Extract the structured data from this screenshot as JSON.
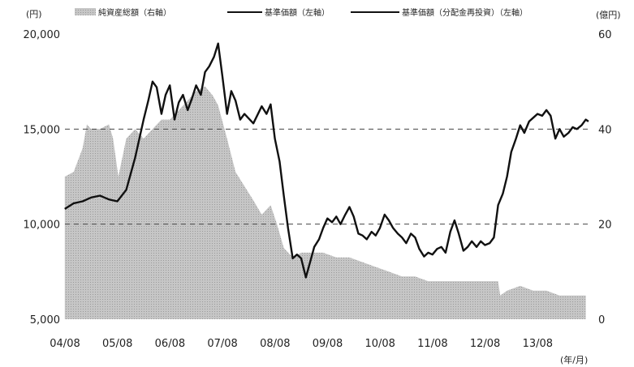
{
  "chart_data": {
    "type": "area+line",
    "legend_position": "top",
    "left_axis_unit": "(円)",
    "right_axis_unit": "(億円)",
    "x_axis_unit": "(年/月)",
    "legend": {
      "net_assets": "純資産総額（右軸）",
      "nav": "基準価額（左軸）",
      "nav_reinvested": "基準価額（分配金再投資）（左軸）"
    },
    "x_tick_labels": [
      "04/08",
      "05/08",
      "06/08",
      "07/08",
      "08/08",
      "09/08",
      "10/08",
      "11/08",
      "12/08",
      "13/08"
    ],
    "x_ticks": [
      2004.583,
      2005.583,
      2006.583,
      2007.583,
      2008.583,
      2009.583,
      2010.583,
      2011.583,
      2012.583,
      2013.583
    ],
    "xlim": [
      2004.583,
      2014.583
    ],
    "left_axis": {
      "ylim": [
        5000,
        20000
      ],
      "ticks": [
        5000,
        10000,
        15000,
        20000
      ],
      "tick_labels": [
        "5,000",
        "10,000",
        "15,000",
        "20,000"
      ]
    },
    "right_axis": {
      "ylim": [
        0,
        60
      ],
      "ticks": [
        0,
        20,
        40,
        60
      ],
      "tick_labels": [
        "0",
        "20",
        "40",
        "60"
      ]
    },
    "gridlines": [
      10000,
      15000
    ],
    "colors": {
      "area": "#c9c9c9",
      "line": "#111111",
      "grid": "#444444"
    },
    "series": [
      {
        "key": "net_assets",
        "axis": "right",
        "style": "area",
        "points": [
          [
            2004.58,
            30
          ],
          [
            2004.75,
            31
          ],
          [
            2004.92,
            36
          ],
          [
            2005.0,
            41
          ],
          [
            2005.08,
            40
          ],
          [
            2005.25,
            40
          ],
          [
            2005.42,
            41
          ],
          [
            2005.5,
            38
          ],
          [
            2005.6,
            30
          ],
          [
            2005.75,
            38
          ],
          [
            2005.92,
            40
          ],
          [
            2006.08,
            38
          ],
          [
            2006.25,
            40
          ],
          [
            2006.42,
            42
          ],
          [
            2006.58,
            42
          ],
          [
            2006.75,
            44
          ],
          [
            2006.92,
            46
          ],
          [
            2007.08,
            48
          ],
          [
            2007.25,
            49
          ],
          [
            2007.4,
            47
          ],
          [
            2007.5,
            45
          ],
          [
            2007.67,
            38
          ],
          [
            2007.83,
            31
          ],
          [
            2008.0,
            28
          ],
          [
            2008.17,
            25
          ],
          [
            2008.33,
            22
          ],
          [
            2008.5,
            24
          ],
          [
            2008.62,
            20
          ],
          [
            2008.75,
            15
          ],
          [
            2008.92,
            13
          ],
          [
            2009.08,
            14
          ],
          [
            2009.25,
            14
          ],
          [
            2009.5,
            14
          ],
          [
            2009.75,
            13
          ],
          [
            2010.0,
            13
          ],
          [
            2010.25,
            12
          ],
          [
            2010.5,
            11
          ],
          [
            2010.75,
            10
          ],
          [
            2011.0,
            9
          ],
          [
            2011.25,
            9
          ],
          [
            2011.5,
            8
          ],
          [
            2011.75,
            8
          ],
          [
            2012.0,
            8
          ],
          [
            2012.25,
            8
          ],
          [
            2012.5,
            8
          ],
          [
            2012.83,
            8
          ],
          [
            2012.87,
            5
          ],
          [
            2013.0,
            6
          ],
          [
            2013.25,
            7
          ],
          [
            2013.5,
            6
          ],
          [
            2013.75,
            6
          ],
          [
            2014.0,
            5
          ],
          [
            2014.25,
            5
          ],
          [
            2014.5,
            5
          ]
        ]
      },
      {
        "key": "nav",
        "axis": "left",
        "style": "line",
        "points": [
          [
            2004.58,
            10800
          ],
          [
            2004.75,
            11100
          ],
          [
            2004.92,
            11200
          ],
          [
            2005.08,
            11400
          ],
          [
            2005.25,
            11500
          ],
          [
            2005.42,
            11300
          ],
          [
            2005.58,
            11200
          ],
          [
            2005.75,
            11800
          ],
          [
            2005.92,
            13500
          ],
          [
            2006.08,
            15500
          ],
          [
            2006.17,
            16500
          ],
          [
            2006.25,
            17500
          ],
          [
            2006.33,
            17200
          ],
          [
            2006.42,
            15800
          ],
          [
            2006.5,
            16800
          ],
          [
            2006.58,
            17300
          ],
          [
            2006.67,
            15500
          ],
          [
            2006.75,
            16400
          ],
          [
            2006.83,
            16800
          ],
          [
            2006.92,
            16000
          ],
          [
            2007.0,
            16600
          ],
          [
            2007.08,
            17300
          ],
          [
            2007.17,
            16800
          ],
          [
            2007.25,
            18000
          ],
          [
            2007.33,
            18300
          ],
          [
            2007.42,
            18800
          ],
          [
            2007.5,
            19500
          ],
          [
            2007.58,
            17800
          ],
          [
            2007.67,
            15800
          ],
          [
            2007.75,
            17000
          ],
          [
            2007.83,
            16500
          ],
          [
            2007.92,
            15500
          ],
          [
            2008.0,
            15800
          ],
          [
            2008.17,
            15300
          ],
          [
            2008.33,
            16200
          ],
          [
            2008.42,
            15800
          ],
          [
            2008.5,
            16300
          ],
          [
            2008.58,
            14500
          ],
          [
            2008.67,
            13300
          ],
          [
            2008.75,
            11500
          ],
          [
            2008.83,
            9800
          ],
          [
            2008.92,
            8200
          ],
          [
            2009.0,
            8400
          ],
          [
            2009.08,
            8200
          ],
          [
            2009.17,
            7200
          ],
          [
            2009.25,
            8000
          ],
          [
            2009.33,
            8800
          ],
          [
            2009.42,
            9200
          ],
          [
            2009.5,
            9800
          ],
          [
            2009.58,
            10300
          ],
          [
            2009.67,
            10100
          ],
          [
            2009.75,
            10400
          ],
          [
            2009.83,
            10000
          ],
          [
            2009.92,
            10500
          ],
          [
            2010.0,
            10900
          ],
          [
            2010.08,
            10400
          ],
          [
            2010.17,
            9500
          ],
          [
            2010.25,
            9400
          ],
          [
            2010.33,
            9200
          ],
          [
            2010.42,
            9600
          ],
          [
            2010.5,
            9400
          ],
          [
            2010.58,
            9800
          ],
          [
            2010.67,
            10500
          ],
          [
            2010.75,
            10200
          ],
          [
            2010.83,
            9800
          ],
          [
            2010.92,
            9500
          ],
          [
            2011.0,
            9300
          ],
          [
            2011.08,
            9000
          ],
          [
            2011.17,
            9500
          ],
          [
            2011.25,
            9300
          ],
          [
            2011.33,
            8700
          ],
          [
            2011.42,
            8300
          ],
          [
            2011.5,
            8500
          ],
          [
            2011.58,
            8400
          ],
          [
            2011.67,
            8700
          ],
          [
            2011.75,
            8800
          ],
          [
            2011.83,
            8500
          ],
          [
            2011.92,
            9600
          ],
          [
            2012.0,
            10200
          ],
          [
            2012.08,
            9500
          ],
          [
            2012.17,
            8600
          ],
          [
            2012.25,
            8800
          ],
          [
            2012.33,
            9100
          ],
          [
            2012.42,
            8800
          ],
          [
            2012.5,
            9100
          ],
          [
            2012.58,
            8900
          ],
          [
            2012.67,
            9000
          ],
          [
            2012.75,
            9300
          ],
          [
            2012.83,
            11000
          ],
          [
            2012.92,
            11600
          ],
          [
            2013.0,
            12500
          ],
          [
            2013.08,
            13800
          ],
          [
            2013.17,
            14500
          ],
          [
            2013.25,
            15200
          ],
          [
            2013.33,
            14800
          ],
          [
            2013.42,
            15400
          ],
          [
            2013.5,
            15600
          ],
          [
            2013.58,
            15800
          ],
          [
            2013.67,
            15700
          ],
          [
            2013.75,
            16000
          ],
          [
            2013.83,
            15700
          ],
          [
            2013.92,
            14500
          ],
          [
            2014.0,
            15000
          ],
          [
            2014.08,
            14600
          ],
          [
            2014.17,
            14800
          ],
          [
            2014.25,
            15100
          ],
          [
            2014.33,
            15000
          ],
          [
            2014.42,
            15200
          ],
          [
            2014.5,
            15500
          ],
          [
            2014.55,
            15400
          ]
        ]
      },
      {
        "key": "nav_reinvested",
        "axis": "left",
        "style": "line",
        "points": [
          [
            2004.58,
            10800
          ],
          [
            2004.75,
            11100
          ],
          [
            2004.92,
            11200
          ],
          [
            2005.08,
            11400
          ],
          [
            2005.25,
            11500
          ],
          [
            2005.42,
            11300
          ],
          [
            2005.58,
            11200
          ],
          [
            2005.75,
            11800
          ],
          [
            2005.92,
            13500
          ],
          [
            2006.08,
            15500
          ],
          [
            2006.17,
            16500
          ],
          [
            2006.25,
            17500
          ],
          [
            2006.33,
            17200
          ],
          [
            2006.42,
            15800
          ],
          [
            2006.5,
            16800
          ],
          [
            2006.58,
            17300
          ],
          [
            2006.67,
            15500
          ],
          [
            2006.75,
            16400
          ],
          [
            2006.83,
            16800
          ],
          [
            2006.92,
            16000
          ],
          [
            2007.0,
            16600
          ],
          [
            2007.08,
            17300
          ],
          [
            2007.17,
            16800
          ],
          [
            2007.25,
            18000
          ],
          [
            2007.33,
            18300
          ],
          [
            2007.42,
            18800
          ],
          [
            2007.5,
            19500
          ],
          [
            2007.58,
            17800
          ],
          [
            2007.67,
            15800
          ],
          [
            2007.75,
            17000
          ],
          [
            2007.83,
            16500
          ],
          [
            2007.92,
            15500
          ],
          [
            2008.0,
            15800
          ],
          [
            2008.17,
            15300
          ],
          [
            2008.33,
            16200
          ],
          [
            2008.42,
            15800
          ],
          [
            2008.5,
            16300
          ],
          [
            2008.58,
            14500
          ],
          [
            2008.67,
            13300
          ],
          [
            2008.75,
            11500
          ],
          [
            2008.83,
            9800
          ],
          [
            2008.92,
            8200
          ],
          [
            2009.0,
            8400
          ],
          [
            2009.08,
            8200
          ],
          [
            2009.17,
            7200
          ],
          [
            2009.25,
            8000
          ],
          [
            2009.33,
            8800
          ],
          [
            2009.42,
            9200
          ],
          [
            2009.5,
            9800
          ],
          [
            2009.58,
            10300
          ],
          [
            2009.67,
            10100
          ],
          [
            2009.75,
            10400
          ],
          [
            2009.83,
            10000
          ],
          [
            2009.92,
            10500
          ],
          [
            2010.0,
            10900
          ],
          [
            2010.08,
            10400
          ],
          [
            2010.17,
            9500
          ],
          [
            2010.25,
            9400
          ],
          [
            2010.33,
            9200
          ],
          [
            2010.42,
            9600
          ],
          [
            2010.5,
            9400
          ],
          [
            2010.58,
            9800
          ],
          [
            2010.67,
            10500
          ],
          [
            2010.75,
            10200
          ],
          [
            2010.83,
            9800
          ],
          [
            2010.92,
            9500
          ],
          [
            2011.0,
            9300
          ],
          [
            2011.08,
            9000
          ],
          [
            2011.17,
            9500
          ],
          [
            2011.25,
            9300
          ],
          [
            2011.33,
            8700
          ],
          [
            2011.42,
            8300
          ],
          [
            2011.5,
            8500
          ],
          [
            2011.58,
            8400
          ],
          [
            2011.67,
            8700
          ],
          [
            2011.75,
            8800
          ],
          [
            2011.83,
            8500
          ],
          [
            2011.92,
            9600
          ],
          [
            2012.0,
            10200
          ],
          [
            2012.08,
            9500
          ],
          [
            2012.17,
            8600
          ],
          [
            2012.25,
            8800
          ],
          [
            2012.33,
            9100
          ],
          [
            2012.42,
            8800
          ],
          [
            2012.5,
            9100
          ],
          [
            2012.58,
            8900
          ],
          [
            2012.67,
            9000
          ],
          [
            2012.75,
            9300
          ],
          [
            2012.83,
            11000
          ],
          [
            2012.92,
            11600
          ],
          [
            2013.0,
            12500
          ],
          [
            2013.08,
            13800
          ],
          [
            2013.17,
            14500
          ],
          [
            2013.25,
            15200
          ],
          [
            2013.33,
            14800
          ],
          [
            2013.42,
            15400
          ],
          [
            2013.5,
            15600
          ],
          [
            2013.58,
            15800
          ],
          [
            2013.67,
            15700
          ],
          [
            2013.75,
            16000
          ],
          [
            2013.83,
            15700
          ],
          [
            2013.92,
            14500
          ],
          [
            2014.0,
            15000
          ],
          [
            2014.08,
            14600
          ],
          [
            2014.17,
            14800
          ],
          [
            2014.25,
            15100
          ],
          [
            2014.33,
            15000
          ],
          [
            2014.42,
            15200
          ],
          [
            2014.5,
            15500
          ],
          [
            2014.55,
            15400
          ]
        ]
      }
    ]
  }
}
